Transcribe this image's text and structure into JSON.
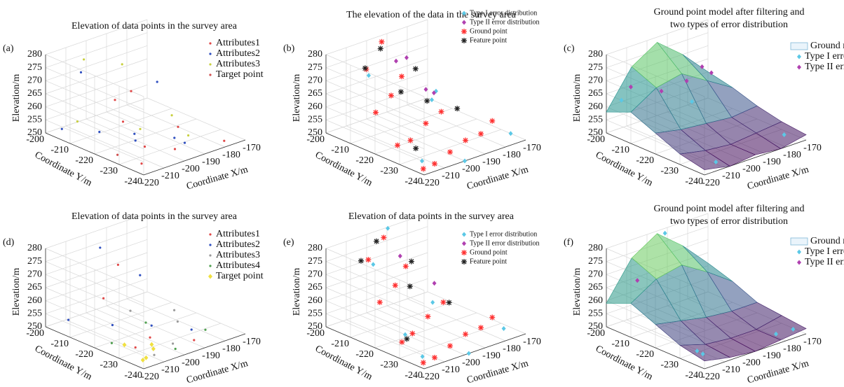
{
  "chart_data": [
    {
      "type": "scatter3d",
      "panel_label": "(a)",
      "title": [
        "Elevation of data points in the survey area"
      ],
      "xlabel": "Coordinate X/m",
      "ylabel": "Coordinate Y/m",
      "zlabel": "Elevation/m",
      "xlim": [
        -220,
        -170
      ],
      "ylim": [
        -240,
        -200
      ],
      "zlim": [
        250,
        280
      ],
      "xticks": [
        -220,
        -210,
        -200,
        -190,
        -180,
        -170
      ],
      "yticks": [
        -240,
        -230,
        -220,
        -210,
        -200
      ],
      "zticks": [
        250,
        255,
        260,
        265,
        270,
        275,
        280
      ],
      "grid": true,
      "series": [
        {
          "name": "Attributes1",
          "color": "#e04848",
          "marker": "dot",
          "x": [
            -215,
            -205,
            -195,
            -185,
            -178,
            -200,
            -190,
            -210
          ],
          "y": [
            -235,
            -228,
            -232,
            -225,
            -238,
            -215,
            -210,
            -220
          ],
          "z": [
            251,
            252,
            250,
            253,
            251,
            255,
            262,
            268
          ]
        },
        {
          "name": "Attributes2",
          "color": "#3050c0",
          "marker": "dot",
          "x": [
            -218,
            -208,
            -198,
            -188,
            -212,
            -195,
            -205,
            -182
          ],
          "y": [
            -205,
            -212,
            -218,
            -226,
            -230,
            -236,
            -202,
            -214
          ],
          "z": [
            253,
            252,
            251,
            250,
            257,
            254,
            270,
            265
          ]
        },
        {
          "name": "Attributes3",
          "color": "#c8d040",
          "marker": "dot",
          "x": [
            -214,
            -200,
            -186,
            -176,
            -206,
            -192
          ],
          "y": [
            -208,
            -222,
            -230,
            -215,
            -204,
            -208
          ],
          "z": [
            256,
            255,
            252,
            251,
            276,
            272
          ]
        },
        {
          "name": "Target point",
          "color": "#d05050",
          "marker": "dot",
          "x": [
            -216
          ],
          "y": [
            -226
          ],
          "z": [
            251
          ]
        }
      ]
    },
    {
      "type": "scatter3d",
      "panel_label": "(b)",
      "title": [
        "The elevation of the data in the survey area"
      ],
      "xlabel": "Coordinate X/m",
      "ylabel": "Coordinate Y/m",
      "zlabel": "Elevation/m",
      "xlim": [
        -220,
        -170
      ],
      "ylim": [
        -240,
        -200
      ],
      "zlim": [
        250,
        280
      ],
      "xticks": [
        -220,
        -210,
        -200,
        -190,
        -180,
        -170
      ],
      "yticks": [
        -240,
        -230,
        -220,
        -210,
        -200
      ],
      "zticks": [
        250,
        255,
        260,
        265,
        270,
        275,
        280
      ],
      "grid": true,
      "series": [
        {
          "name": "Type I error distribution",
          "color": "#5bc8e6",
          "marker": "diamond",
          "x": [
            -215,
            -175,
            -205,
            -200,
            -180,
            -190
          ],
          "y": [
            -235,
            -238,
            -205,
            -240,
            -210,
            -220
          ],
          "z": [
            252,
            253,
            270,
            250,
            256,
            266
          ]
        },
        {
          "name": "Type II error distribution",
          "color": "#b040b0",
          "marker": "diamond",
          "x": [
            -200,
            -190,
            -195,
            -185
          ],
          "y": [
            -212,
            -208,
            -220,
            -215
          ],
          "z": [
            277,
            274,
            268,
            262
          ]
        },
        {
          "name": "Ground point",
          "color": "#ff3030",
          "marker": "star",
          "x": [
            -218,
            -210,
            -200,
            -190,
            -180,
            -172,
            -215,
            -205,
            -195,
            -185,
            -210,
            -200,
            -190,
            -205,
            -195
          ],
          "y": [
            -238,
            -236,
            -234,
            -232,
            -230,
            -228,
            -225,
            -222,
            -220,
            -218,
            -212,
            -210,
            -206,
            -204,
            -202
          ],
          "z": [
            251,
            250,
            251,
            252,
            251,
            253,
            254,
            252,
            255,
            256,
            260,
            263,
            266,
            272,
            279
          ]
        },
        {
          "name": "Feature point",
          "color": "#222222",
          "marker": "star",
          "x": [
            -208,
            -198,
            -188,
            -200,
            -192,
            -182,
            -212
          ],
          "y": [
            -206,
            -204,
            -210,
            -214,
            -218,
            -222,
            -230
          ],
          "z": [
            274,
            278,
            270,
            266,
            262,
            258,
            254
          ]
        }
      ]
    },
    {
      "type": "surface3d",
      "panel_label": "(c)",
      "title": [
        "Ground point model after filtering and",
        "two types of error distribution"
      ],
      "xlabel": "Coordinate X/m",
      "ylabel": "Coordinate Y/m",
      "zlabel": "Elevation/m",
      "xlim": [
        -220,
        -170
      ],
      "ylim": [
        -240,
        -200
      ],
      "zlim": [
        250,
        280
      ],
      "xticks": [
        -220,
        -210,
        -200,
        -190,
        -180,
        -170
      ],
      "yticks": [
        -240,
        -230,
        -220,
        -210,
        -200
      ],
      "zticks": [
        250,
        255,
        260,
        265,
        270,
        275,
        280
      ],
      "grid": true,
      "surface": {
        "name": "Ground model",
        "x": [
          -220,
          -207.5,
          -195,
          -182.5,
          -170
        ],
        "y": [
          -240,
          -230,
          -220,
          -210,
          -200
        ],
        "z": [
          [
            252,
            250,
            251,
            250,
            252
          ],
          [
            254,
            252,
            251,
            252,
            253
          ],
          [
            258,
            256,
            255,
            254,
            255
          ],
          [
            262,
            268,
            270,
            264,
            258
          ],
          [
            258,
            272,
            278,
            270,
            260
          ]
        ]
      },
      "series": [
        {
          "name": "Type I error",
          "color": "#5bc8e6",
          "marker": "diamond",
          "x": [
            -215,
            -212,
            -176,
            -190
          ],
          "y": [
            -202,
            -238,
            -236,
            -210
          ],
          "z": [
            262,
            252,
            252,
            258
          ]
        },
        {
          "name": "Type II error",
          "color": "#b040b0",
          "marker": "diamond",
          "x": [
            -214,
            -205,
            -195,
            -185,
            -178
          ],
          "y": [
            -205,
            -210,
            -212,
            -210,
            -208
          ],
          "z": [
            268,
            266,
            268,
            270,
            265
          ]
        }
      ]
    },
    {
      "type": "scatter3d",
      "panel_label": "(d)",
      "title": [
        "Elevation of data points in the survey area"
      ],
      "xlabel": "Coordinate X/m",
      "ylabel": "Coordinate Y/m",
      "zlabel": "Elevation/m",
      "xlim": [
        -220,
        -170
      ],
      "ylim": [
        -240,
        -200
      ],
      "zlim": [
        250,
        280
      ],
      "xticks": [
        -220,
        -210,
        -200,
        -190,
        -180,
        -170
      ],
      "yticks": [
        -240,
        -230,
        -220,
        -210,
        -200
      ],
      "zticks": [
        250,
        255,
        260,
        265,
        270,
        275,
        280
      ],
      "grid": true,
      "series": [
        {
          "name": "Attributes1",
          "color": "#e04848",
          "marker": "dot",
          "x": [
            -212,
            -200,
            -188,
            -206,
            -194
          ],
          "y": [
            -230,
            -226,
            -234,
            -212,
            -208
          ],
          "z": [
            252,
            251,
            250,
            262,
            270
          ]
        },
        {
          "name": "Attributes2",
          "color": "#3050c0",
          "marker": "dot",
          "x": [
            -216,
            -204,
            -192,
            -182,
            -198,
            -188
          ],
          "y": [
            -206,
            -214,
            -220,
            -228,
            -204,
            -212
          ],
          "z": [
            254,
            252,
            251,
            250,
            276,
            266
          ]
        },
        {
          "name": "Attributes3",
          "color": "#9a9a9a",
          "marker": "dot",
          "x": [
            -210,
            -196,
            -184,
            -176,
            -200
          ],
          "y": [
            -236,
            -232,
            -224,
            -216,
            -218
          ],
          "z": [
            251,
            250,
            252,
            251,
            258
          ]
        },
        {
          "name": "Attributes4",
          "color": "#50a050",
          "marker": "dot",
          "x": [
            -214,
            -202,
            -190,
            -180
          ],
          "y": [
            -222,
            -238,
            -216,
            -232
          ],
          "z": [
            251,
            252,
            250,
            251
          ]
        },
        {
          "name": "Target point",
          "color": "#f0e040",
          "marker": "diamond",
          "x": [
            -218,
            -214,
            -208,
            -204,
            -215
          ],
          "y": [
            -238,
            -236,
            -234,
            -230,
            -228
          ],
          "z": [
            252,
            251,
            252,
            251,
            253
          ]
        }
      ]
    },
    {
      "type": "scatter3d",
      "panel_label": "(e)",
      "title": [
        "Elevation of data points in the survey area"
      ],
      "xlabel": "Coordinate X/m",
      "ylabel": "Coordinate Y/m",
      "zlabel": "Elevation/m",
      "xlim": [
        -220,
        -170
      ],
      "ylim": [
        -240,
        -200
      ],
      "zlim": [
        250,
        280
      ],
      "xticks": [
        -220,
        -210,
        -200,
        -190,
        -180,
        -170
      ],
      "yticks": [
        -240,
        -230,
        -220,
        -210,
        -200
      ],
      "zticks": [
        250,
        255,
        260,
        265,
        270,
        275,
        280
      ],
      "grid": true,
      "series": [
        {
          "name": "Type I error distribution",
          "color": "#5bc8e6",
          "marker": "diamond",
          "x": [
            -216,
            -176,
            -204,
            -198,
            -182,
            -192,
            -210
          ],
          "y": [
            -236,
            -236,
            -206,
            -240,
            -212,
            -202,
            -224
          ],
          "z": [
            252,
            252,
            272,
            250,
            254,
            281,
            254
          ]
        },
        {
          "name": "Type II error distribution",
          "color": "#b040b0",
          "marker": "diamond",
          "x": [
            -198,
            -186
          ],
          "y": [
            -212,
            -216
          ],
          "z": [
            276,
            264
          ]
        },
        {
          "name": "Ground point",
          "color": "#ff3030",
          "marker": "star",
          "x": [
            -218,
            -210,
            -200,
            -190,
            -180,
            -172,
            -214,
            -204,
            -194,
            -184,
            -208,
            -198,
            -188,
            -204,
            -194
          ],
          "y": [
            -238,
            -236,
            -234,
            -232,
            -230,
            -228,
            -226,
            -222,
            -220,
            -218,
            -212,
            -210,
            -206,
            -204,
            -202
          ],
          "z": [
            251,
            250,
            251,
            252,
            251,
            252,
            253,
            252,
            255,
            257,
            261,
            264,
            267,
            273,
            278
          ]
        },
        {
          "name": "Feature point",
          "color": "#222222",
          "marker": "star",
          "x": [
            -210,
            -200,
            -190,
            -198,
            -186,
            -214
          ],
          "y": [
            -206,
            -204,
            -210,
            -216,
            -222,
            -228
          ],
          "z": [
            275,
            279,
            271,
            266,
            259,
            255
          ]
        }
      ]
    },
    {
      "type": "surface3d",
      "panel_label": "(f)",
      "title": [
        "Ground point model after filtering and",
        "two types of error distribution"
      ],
      "xlabel": "Coordinate X/m",
      "ylabel": "Coordinate Y/m",
      "zlabel": "Elevation/m",
      "xlim": [
        -220,
        -170
      ],
      "ylim": [
        -240,
        -200
      ],
      "zlim": [
        250,
        280
      ],
      "xticks": [
        -220,
        -210,
        -200,
        -190,
        -180,
        -170
      ],
      "yticks": [
        -240,
        -230,
        -220,
        -210,
        -200
      ],
      "zticks": [
        250,
        255,
        260,
        265,
        270,
        275,
        280
      ],
      "grid": true,
      "surface": {
        "name": "Ground model",
        "x": [
          -220,
          -207.5,
          -195,
          -182.5,
          -170
        ],
        "y": [
          -240,
          -230,
          -220,
          -210,
          -200
        ],
        "z": [
          [
            253,
            251,
            250,
            251,
            252
          ],
          [
            255,
            252,
            251,
            251,
            253
          ],
          [
            259,
            257,
            255,
            254,
            254
          ],
          [
            263,
            269,
            271,
            265,
            258
          ],
          [
            259,
            273,
            279,
            271,
            261
          ]
        ]
      },
      "series": [
        {
          "name": "Type I error",
          "color": "#5bc8e6",
          "marker": "diamond",
          "x": [
            -216,
            -214,
            -174,
            -196,
            -180
          ],
          "y": [
            -236,
            -232,
            -238,
            -204,
            -236
          ],
          "z": [
            253,
            252,
            252,
            281,
            251
          ]
        },
        {
          "name": "Type II error",
          "color": "#b040b0",
          "marker": "diamond",
          "x": [
            -212
          ],
          "y": [
            -206
          ],
          "z": [
            268
          ]
        }
      ]
    }
  ]
}
